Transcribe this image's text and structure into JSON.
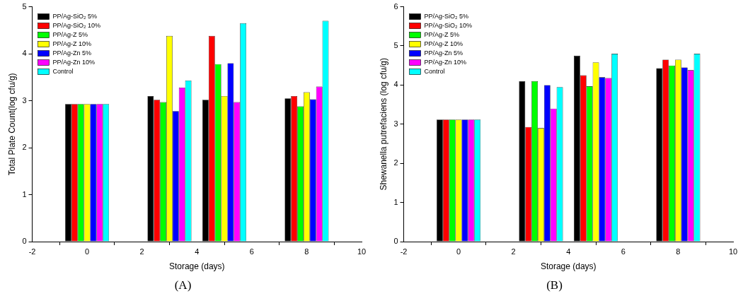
{
  "chart_data": [
    {
      "type": "bar",
      "title": "(A)",
      "x_label": "Storage (days)",
      "y_label": "Total Plate Count(log cfu/g)",
      "x": [
        0,
        3,
        5,
        8
      ],
      "xlim": [
        -2,
        10
      ],
      "xticks": [
        -2,
        0,
        2,
        4,
        6,
        8,
        10
      ],
      "ylim": [
        0,
        5
      ],
      "yticks": [
        0,
        1,
        2,
        3,
        4,
        5
      ],
      "grid": false,
      "legend": "upper left",
      "series": [
        {
          "name": "PP/Ag-SiO₂ 5%",
          "color": "#000000",
          "values": [
            2.93,
            3.1,
            3.02,
            3.05
          ]
        },
        {
          "name": "PP/Ag-SiO₂ 10%",
          "color": "#ff0000",
          "values": [
            2.93,
            3.02,
            4.38,
            3.1
          ]
        },
        {
          "name": "PP/Ag-Z 5%",
          "color": "#00ff00",
          "values": [
            2.93,
            2.97,
            3.78,
            2.88
          ]
        },
        {
          "name": "PP/Ag-Z 10%",
          "color": "#ffff00",
          "values": [
            2.93,
            4.38,
            3.1,
            3.18
          ]
        },
        {
          "name": "PP/Ag-Zn 5%",
          "color": "#0000ff",
          "values": [
            2.93,
            2.78,
            3.8,
            3.03
          ]
        },
        {
          "name": "PP/Ag-Zn 10%",
          "color": "#ff00ff",
          "values": [
            2.93,
            3.28,
            2.97,
            3.3
          ]
        },
        {
          "name": "Control",
          "color": "#00ffff",
          "values": [
            2.93,
            3.43,
            4.65,
            4.7
          ]
        }
      ]
    },
    {
      "type": "bar",
      "title": "(B)",
      "x_label": "Storage (days)",
      "y_label": "Shewanella putrefaciens (log cfu/g)",
      "x": [
        0,
        3,
        5,
        8
      ],
      "xlim": [
        -2,
        10
      ],
      "xticks": [
        -2,
        0,
        2,
        4,
        6,
        8,
        10
      ],
      "ylim": [
        0,
        6
      ],
      "yticks": [
        0,
        1,
        2,
        3,
        4,
        5,
        6
      ],
      "grid": false,
      "legend": "upper left",
      "series": [
        {
          "name": "PP/Ag-SiO₂ 5%",
          "color": "#000000",
          "values": [
            3.12,
            4.1,
            4.75,
            4.43
          ]
        },
        {
          "name": "PP/Ag-SiO₂ 10%",
          "color": "#ff0000",
          "values": [
            3.12,
            2.93,
            4.25,
            4.65
          ]
        },
        {
          "name": "PP/Ag-Z 5%",
          "color": "#00ff00",
          "values": [
            3.12,
            4.1,
            3.97,
            4.5
          ]
        },
        {
          "name": "PP/Ag-Z 10%",
          "color": "#ffff00",
          "values": [
            3.12,
            2.9,
            4.58,
            4.65
          ]
        },
        {
          "name": "PP/Ag-Zn 5%",
          "color": "#0000ff",
          "values": [
            3.12,
            4.0,
            4.2,
            4.45
          ]
        },
        {
          "name": "PP/Ag-Zn 10%",
          "color": "#ff00ff",
          "values": [
            3.12,
            3.4,
            4.18,
            4.38
          ]
        },
        {
          "name": "Control",
          "color": "#00ffff",
          "values": [
            3.12,
            3.95,
            4.8,
            4.8
          ]
        }
      ]
    }
  ]
}
